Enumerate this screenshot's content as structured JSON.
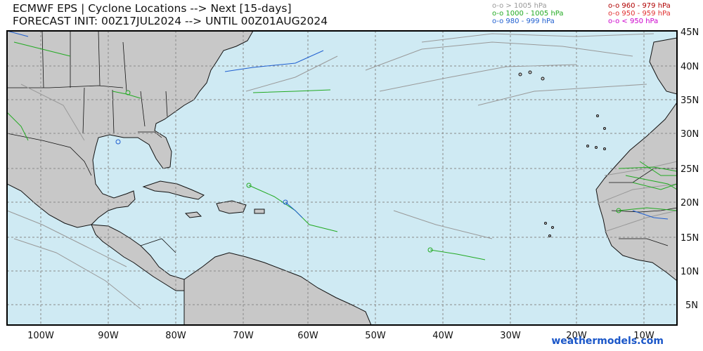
{
  "title": {
    "line1": "ECMWF EPS | Cyclone Locations --> Next [15-days]",
    "line2": "FORECAST INIT: 00Z17JUL2024 --> UNTIL 00Z01AUG2024"
  },
  "legend": {
    "col1": [
      {
        "text": "o-o > 1005 hPa",
        "color": "#999999"
      },
      {
        "text": "o-o 1000 - 1005 hPa",
        "color": "#22aa22"
      },
      {
        "text": "o-o 980 - 999 hPa",
        "color": "#1f5fd0"
      }
    ],
    "col2": [
      {
        "text": "o-o 960 - 979 hPa",
        "color": "#b00000"
      },
      {
        "text": "o-o 950 - 959 hPa",
        "color": "#e03030"
      },
      {
        "text": "o-o < 950 hPa",
        "color": "#cc00cc"
      }
    ]
  },
  "axes": {
    "lon_labels": [
      "100W",
      "90W",
      "80W",
      "70W",
      "60W",
      "50W",
      "40W",
      "30W",
      "20W",
      "10W"
    ],
    "lat_labels": [
      "45N",
      "40N",
      "35N",
      "30N",
      "25N",
      "20N",
      "15N",
      "10N",
      "5N"
    ]
  },
  "colors": {
    "ocean": "#cfeaf3",
    "land": "#c8c8c8",
    "border": "#111111",
    "grid": "#8a8a8a"
  },
  "credit": "weathermodels.com"
}
